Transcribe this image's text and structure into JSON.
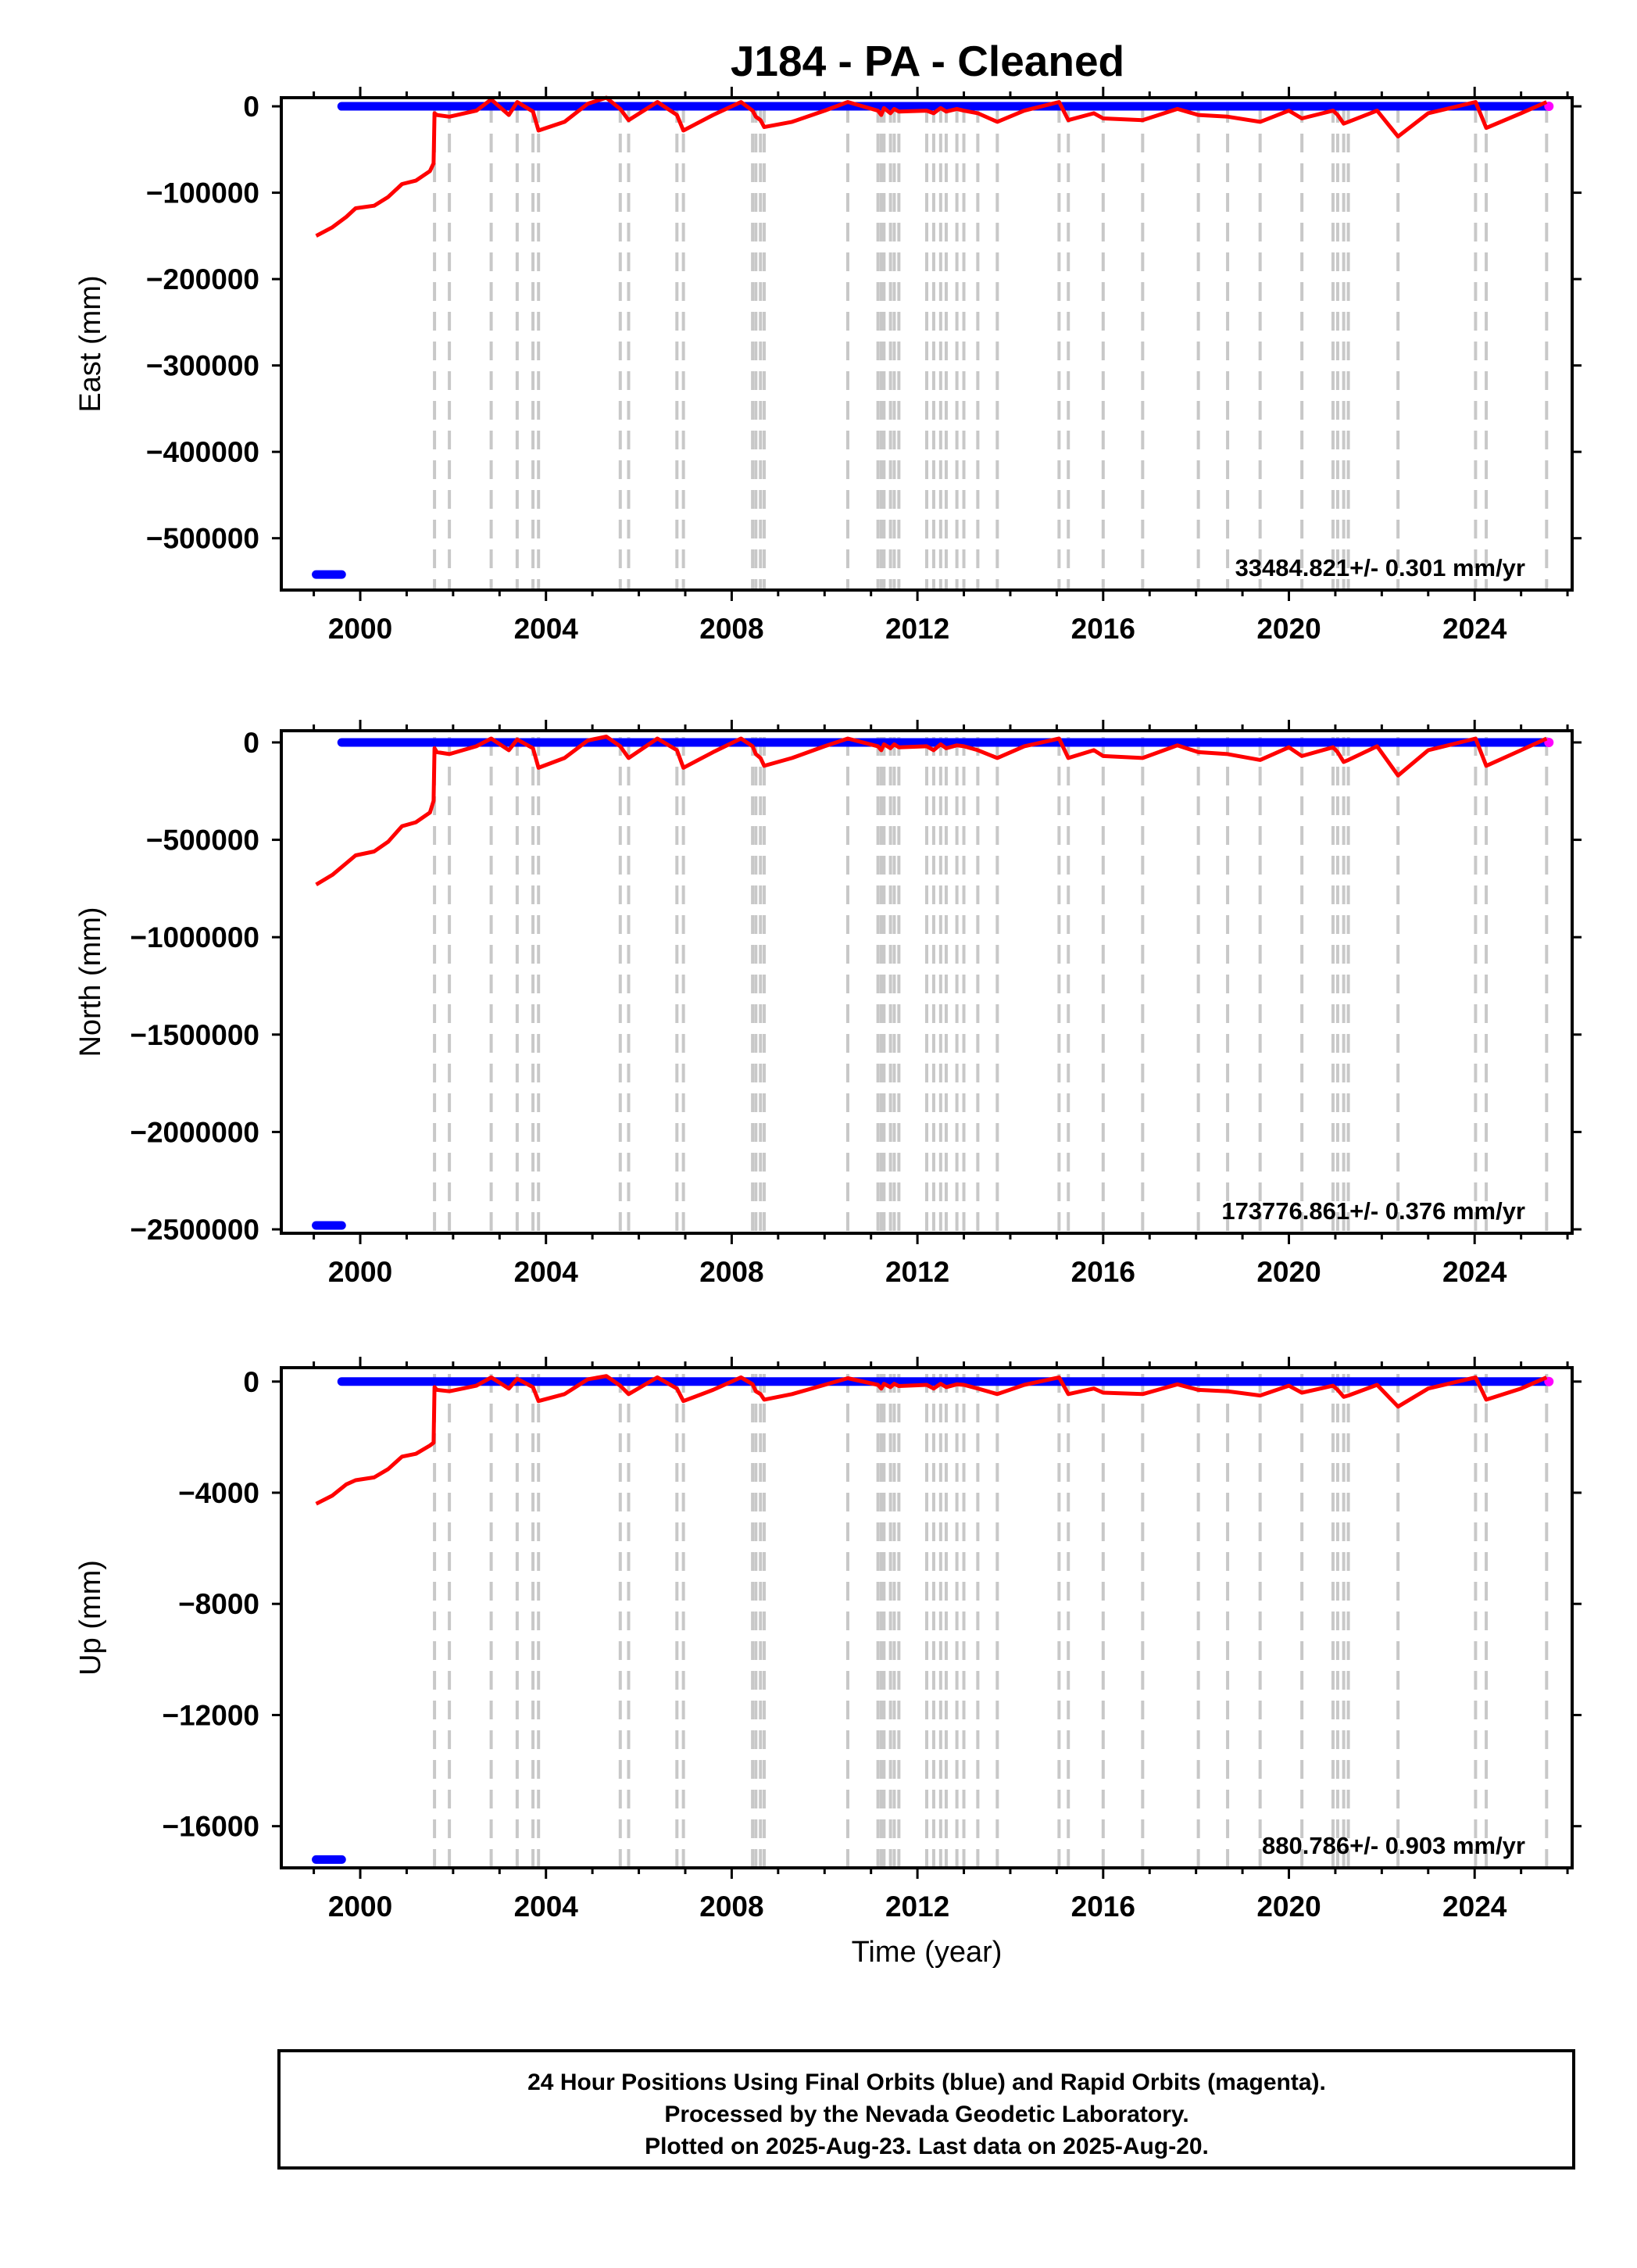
{
  "chart_data": {
    "type": "line",
    "title": "J184  - PA - Cleaned",
    "xlabel": "Time (year)",
    "xlim": [
      1998.3,
      2026.1
    ],
    "x_ticks": [
      2000,
      2004,
      2008,
      2012,
      2016,
      2020,
      2024
    ],
    "x_tick_labels": [
      "2000",
      "2004",
      "2008",
      "2012",
      "2016",
      "2020",
      "2024"
    ],
    "colors": {
      "final": "#0000ff",
      "rapid": "#ff00ff",
      "model": "#ff0000",
      "event_line": "#c8c8c8",
      "frame": "#000000"
    },
    "event_lines": [
      2001.6,
      2001.92,
      2002.82,
      2003.38,
      2003.72,
      2003.84,
      2005.6,
      2005.78,
      2006.82,
      2006.96,
      2008.45,
      2008.52,
      2008.62,
      2008.7,
      2010.5,
      2011.15,
      2011.22,
      2011.28,
      2011.42,
      2011.5,
      2011.6,
      2012.2,
      2012.35,
      2012.5,
      2012.62,
      2012.85,
      2013.0,
      2013.3,
      2013.72,
      2015.05,
      2015.25,
      2016.0,
      2016.85,
      2018.05,
      2018.68,
      2019.38,
      2020.28,
      2020.95,
      2021.05,
      2021.18,
      2021.28,
      2022.35,
      2024.02,
      2024.25,
      2025.55
    ],
    "footer": [
      "24 Hour Positions Using Final Orbits (blue) and Rapid Orbits (magenta).",
      "Processed by the Nevada Geodetic Laboratory.",
      "Plotted on 2025-Aug-23. Last data on 2025-Aug-20."
    ],
    "panels": [
      {
        "ylabel": "East (mm)",
        "ylim": [
          -560000,
          10000
        ],
        "y_ticks": [
          0,
          -100000,
          -200000,
          -300000,
          -400000,
          -500000
        ],
        "y_tick_labels": [
          "0",
          "−100000",
          "−200000",
          "−300000",
          "−400000",
          "−500000"
        ],
        "rate_text": "33484.821+/- 0.301 mm/yr",
        "final_outlier": {
          "x": [
            1999.05,
            1999.6
          ],
          "y": -542000
        },
        "final_main": {
          "x": [
            1999.6,
            2025.55
          ],
          "y": 0
        },
        "rapid_points": [
          {
            "x": 2025.6,
            "y": 0
          }
        ],
        "model": {
          "x": [
            1999.05,
            1999.4,
            1999.7,
            1999.9,
            2000.3,
            2000.6,
            2000.9,
            2001.2,
            2001.5,
            2001.58,
            2001.6,
            2001.65,
            2001.92,
            2002.5,
            2002.82,
            2003.2,
            2003.38,
            2003.72,
            2003.84,
            2004.4,
            2004.9,
            2005.3,
            2005.6,
            2005.78,
            2006.4,
            2006.82,
            2006.96,
            2007.6,
            2008.2,
            2008.45,
            2008.52,
            2008.62,
            2008.7,
            2009.3,
            2010.0,
            2010.5,
            2011.15,
            2011.22,
            2011.28,
            2011.42,
            2011.5,
            2011.6,
            2012.2,
            2012.35,
            2012.5,
            2012.62,
            2012.85,
            2013.0,
            2013.3,
            2013.72,
            2014.3,
            2015.05,
            2015.25,
            2015.8,
            2016.0,
            2016.85,
            2017.6,
            2018.05,
            2018.68,
            2019.38,
            2020.0,
            2020.28,
            2020.95,
            2021.05,
            2021.18,
            2021.28,
            2021.9,
            2022.35,
            2023.0,
            2024.02,
            2024.25,
            2025.0,
            2025.55
          ],
          "y": [
            -150000,
            -140000,
            -128000,
            -118000,
            -115000,
            -105000,
            -90000,
            -86000,
            -75000,
            -66000,
            -8000,
            -10000,
            -12000,
            -5000,
            8000,
            -10000,
            5000,
            -6000,
            -28000,
            -18000,
            3000,
            10000,
            -3000,
            -16000,
            5000,
            -10000,
            -28000,
            -10000,
            5000,
            -5000,
            -12000,
            -16000,
            -24000,
            -18000,
            -5000,
            5000,
            -5000,
            -10000,
            -2000,
            -8000,
            -3000,
            -6000,
            -5000,
            -8000,
            -2000,
            -6000,
            -3000,
            -5000,
            -8000,
            -18000,
            -5000,
            5000,
            -16000,
            -8000,
            -14000,
            -16000,
            -3000,
            -10000,
            -12000,
            -18000,
            -5000,
            -14000,
            -5000,
            -10000,
            -20000,
            -18000,
            -5000,
            -35000,
            -8000,
            5000,
            -25000,
            -8000,
            5000
          ]
        }
      },
      {
        "ylabel": "North (mm)",
        "ylim": [
          -2520000,
          60000
        ],
        "y_ticks": [
          0,
          -500000,
          -1000000,
          -1500000,
          -2000000,
          -2500000
        ],
        "y_tick_labels": [
          "0",
          "−500000",
          "−1000000",
          "−1500000",
          "−2000000",
          "−2500000"
        ],
        "rate_text": "173776.861+/- 0.376 mm/yr",
        "final_outlier": {
          "x": [
            1999.05,
            1999.6
          ],
          "y": -2480000
        },
        "final_main": {
          "x": [
            1999.6,
            2025.55
          ],
          "y": 0
        },
        "rapid_points": [
          {
            "x": 2025.6,
            "y": 0
          }
        ],
        "model": {
          "x": [
            1999.05,
            1999.4,
            1999.7,
            1999.9,
            2000.3,
            2000.6,
            2000.9,
            2001.2,
            2001.5,
            2001.58,
            2001.6,
            2001.65,
            2001.92,
            2002.5,
            2002.82,
            2003.2,
            2003.38,
            2003.72,
            2003.84,
            2004.4,
            2004.9,
            2005.3,
            2005.6,
            2005.78,
            2006.4,
            2006.82,
            2006.96,
            2007.6,
            2008.2,
            2008.45,
            2008.52,
            2008.62,
            2008.7,
            2009.3,
            2010.0,
            2010.5,
            2011.15,
            2011.22,
            2011.28,
            2011.42,
            2011.5,
            2011.6,
            2012.2,
            2012.35,
            2012.5,
            2012.62,
            2012.85,
            2013.0,
            2013.3,
            2013.72,
            2014.3,
            2015.05,
            2015.25,
            2015.8,
            2016.0,
            2016.85,
            2017.6,
            2018.05,
            2018.68,
            2019.38,
            2020.0,
            2020.28,
            2020.95,
            2021.05,
            2021.18,
            2021.28,
            2021.9,
            2022.35,
            2023.0,
            2024.02,
            2024.25,
            2025.0,
            2025.55
          ],
          "y": [
            -730000,
            -680000,
            -620000,
            -580000,
            -560000,
            -510000,
            -430000,
            -410000,
            -360000,
            -300000,
            -30000,
            -50000,
            -60000,
            -20000,
            20000,
            -40000,
            15000,
            -30000,
            -130000,
            -80000,
            10000,
            30000,
            -20000,
            -80000,
            20000,
            -40000,
            -130000,
            -50000,
            20000,
            -20000,
            -60000,
            -80000,
            -120000,
            -80000,
            -20000,
            20000,
            -20000,
            -40000,
            -10000,
            -30000,
            -10000,
            -25000,
            -20000,
            -40000,
            -10000,
            -30000,
            -15000,
            -20000,
            -40000,
            -80000,
            -20000,
            20000,
            -80000,
            -40000,
            -70000,
            -80000,
            -15000,
            -50000,
            -60000,
            -90000,
            -25000,
            -70000,
            -25000,
            -50000,
            -100000,
            -90000,
            -20000,
            -170000,
            -40000,
            20000,
            -120000,
            -40000,
            20000
          ]
        }
      },
      {
        "ylabel": "Up (mm)",
        "ylim": [
          -17500,
          500
        ],
        "y_ticks": [
          0,
          -4000,
          -8000,
          -12000,
          -16000
        ],
        "y_tick_labels": [
          "0",
          "−4000",
          "−8000",
          "−12000",
          "−16000"
        ],
        "rate_text": "880.786+/- 0.903 mm/yr",
        "final_outlier": {
          "x": [
            1999.05,
            1999.6
          ],
          "y": -17200
        },
        "final_main": {
          "x": [
            1999.6,
            2025.55
          ],
          "y": 0
        },
        "rapid_points": [
          {
            "x": 2025.6,
            "y": 0
          }
        ],
        "model": {
          "x": [
            1999.05,
            1999.4,
            1999.7,
            1999.9,
            2000.3,
            2000.6,
            2000.9,
            2001.2,
            2001.5,
            2001.58,
            2001.6,
            2001.65,
            2001.92,
            2002.5,
            2002.82,
            2003.2,
            2003.38,
            2003.72,
            2003.84,
            2004.4,
            2004.9,
            2005.3,
            2005.6,
            2005.78,
            2006.4,
            2006.82,
            2006.96,
            2007.6,
            2008.2,
            2008.45,
            2008.52,
            2008.62,
            2008.7,
            2009.3,
            2010.0,
            2010.5,
            2011.15,
            2011.22,
            2011.28,
            2011.42,
            2011.5,
            2011.6,
            2012.2,
            2012.35,
            2012.5,
            2012.62,
            2012.85,
            2013.0,
            2013.3,
            2013.72,
            2014.3,
            2015.05,
            2015.25,
            2015.8,
            2016.0,
            2016.85,
            2017.6,
            2018.05,
            2018.68,
            2019.38,
            2020.0,
            2020.28,
            2020.95,
            2021.05,
            2021.18,
            2021.28,
            2021.9,
            2022.35,
            2023.0,
            2024.02,
            2024.25,
            2025.0,
            2025.55
          ],
          "y": [
            -4400,
            -4100,
            -3700,
            -3550,
            -3450,
            -3150,
            -2700,
            -2600,
            -2300,
            -2200,
            -200,
            -300,
            -350,
            -150,
            150,
            -250,
            100,
            -200,
            -700,
            -450,
            80,
            200,
            -150,
            -450,
            150,
            -250,
            -700,
            -300,
            150,
            -100,
            -350,
            -450,
            -650,
            -450,
            -120,
            120,
            -120,
            -250,
            -80,
            -200,
            -80,
            -160,
            -120,
            -250,
            -80,
            -200,
            -100,
            -120,
            -250,
            -450,
            -120,
            150,
            -450,
            -250,
            -400,
            -450,
            -100,
            -300,
            -350,
            -500,
            -150,
            -400,
            -150,
            -300,
            -550,
            -500,
            -120,
            -900,
            -250,
            150,
            -650,
            -250,
            150
          ]
        }
      }
    ]
  }
}
